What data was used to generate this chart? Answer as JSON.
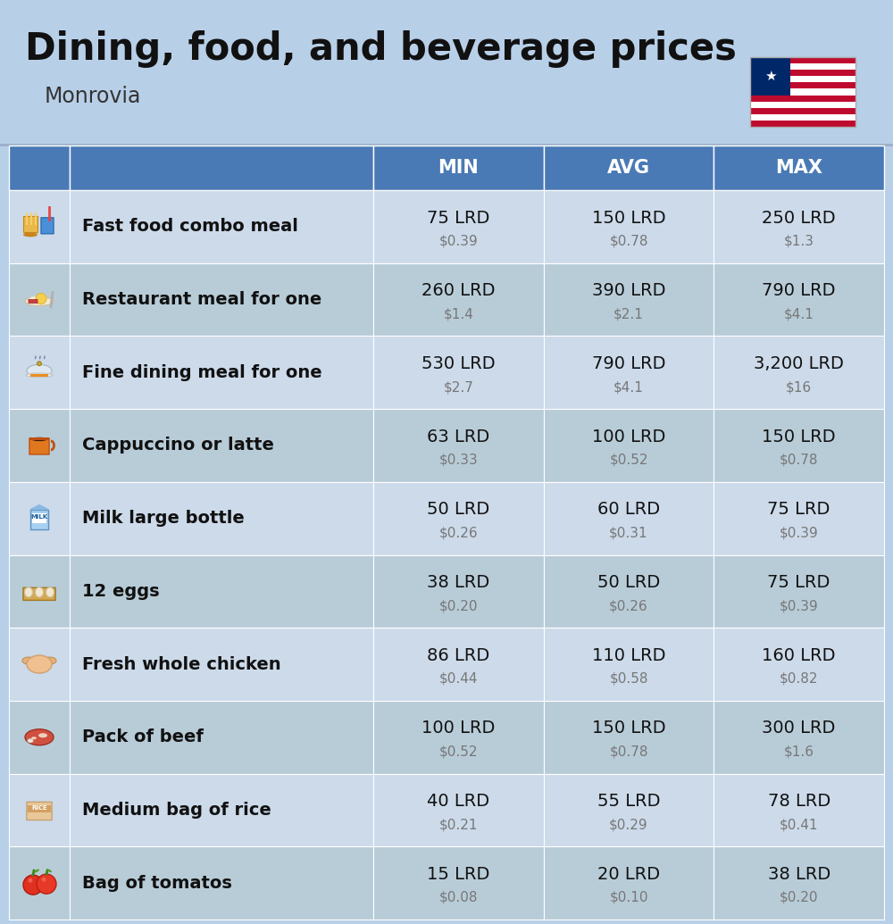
{
  "title": "Dining, food, and beverage prices",
  "subtitle": "Monrovia",
  "bg_color": "#b8cfe8",
  "header_bg": "#4a7ab5",
  "row_colors": [
    "#ccdaea",
    "#b8ccd8"
  ],
  "col_headers": [
    "MIN",
    "AVG",
    "MAX"
  ],
  "rows": [
    {
      "label": "Fast food combo meal",
      "min_lrd": "75 LRD",
      "min_usd": "$0.39",
      "avg_lrd": "150 LRD",
      "avg_usd": "$0.78",
      "max_lrd": "250 LRD",
      "max_usd": "$1.3"
    },
    {
      "label": "Restaurant meal for one",
      "min_lrd": "260 LRD",
      "min_usd": "$1.4",
      "avg_lrd": "390 LRD",
      "avg_usd": "$2.1",
      "max_lrd": "790 LRD",
      "max_usd": "$4.1"
    },
    {
      "label": "Fine dining meal for one",
      "min_lrd": "530 LRD",
      "min_usd": "$2.7",
      "avg_lrd": "790 LRD",
      "avg_usd": "$4.1",
      "max_lrd": "3,200 LRD",
      "max_usd": "$16"
    },
    {
      "label": "Cappuccino or latte",
      "min_lrd": "63 LRD",
      "min_usd": "$0.33",
      "avg_lrd": "100 LRD",
      "avg_usd": "$0.52",
      "max_lrd": "150 LRD",
      "max_usd": "$0.78"
    },
    {
      "label": "Milk large bottle",
      "min_lrd": "50 LRD",
      "min_usd": "$0.26",
      "avg_lrd": "60 LRD",
      "avg_usd": "$0.31",
      "max_lrd": "75 LRD",
      "max_usd": "$0.39"
    },
    {
      "label": "12 eggs",
      "min_lrd": "38 LRD",
      "min_usd": "$0.20",
      "avg_lrd": "50 LRD",
      "avg_usd": "$0.26",
      "max_lrd": "75 LRD",
      "max_usd": "$0.39"
    },
    {
      "label": "Fresh whole chicken",
      "min_lrd": "86 LRD",
      "min_usd": "$0.44",
      "avg_lrd": "110 LRD",
      "avg_usd": "$0.58",
      "max_lrd": "160 LRD",
      "max_usd": "$0.82"
    },
    {
      "label": "Pack of beef",
      "min_lrd": "100 LRD",
      "min_usd": "$0.52",
      "avg_lrd": "150 LRD",
      "avg_usd": "$0.78",
      "max_lrd": "300 LRD",
      "max_usd": "$1.6"
    },
    {
      "label": "Medium bag of rice",
      "min_lrd": "40 LRD",
      "min_usd": "$0.21",
      "avg_lrd": "55 LRD",
      "avg_usd": "$0.29",
      "max_lrd": "78 LRD",
      "max_usd": "$0.41"
    },
    {
      "label": "Bag of tomatos",
      "min_lrd": "15 LRD",
      "min_usd": "$0.08",
      "avg_lrd": "20 LRD",
      "avg_usd": "$0.10",
      "max_lrd": "38 LRD",
      "max_usd": "$0.20"
    }
  ],
  "title_fontsize": 30,
  "subtitle_fontsize": 17,
  "header_fontsize": 15,
  "label_fontsize": 14,
  "value_fontsize": 14,
  "usd_fontsize": 11
}
